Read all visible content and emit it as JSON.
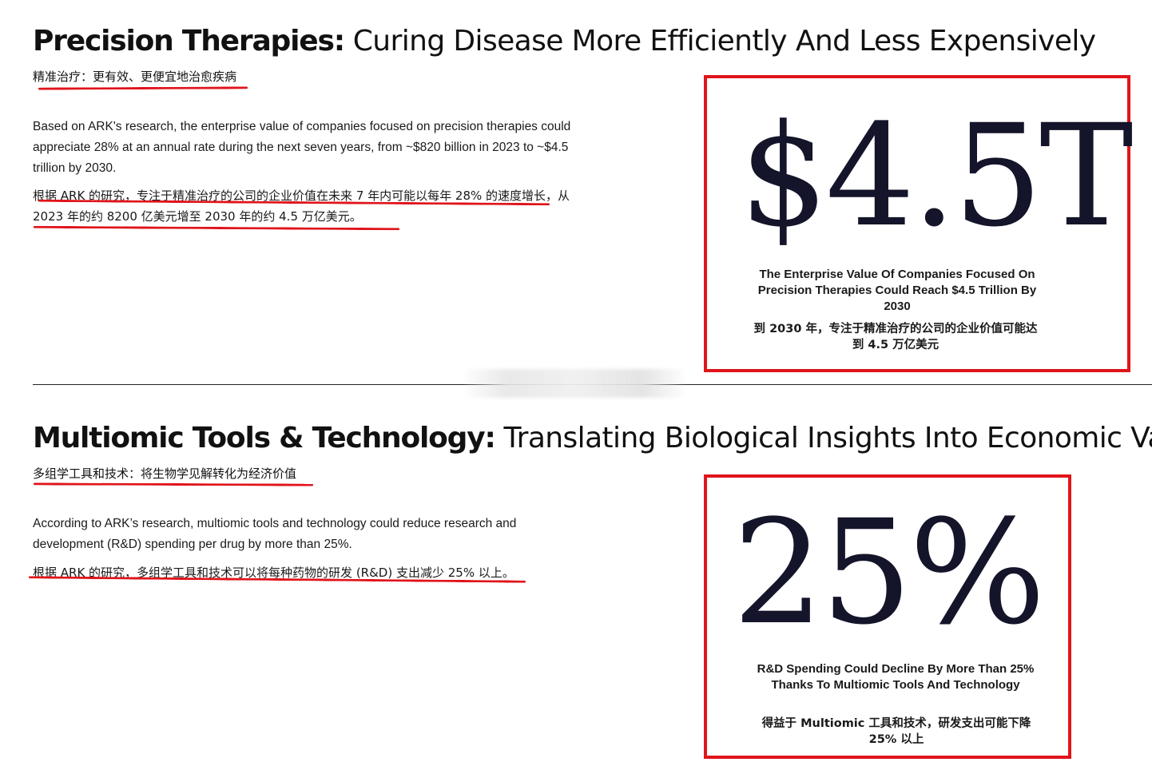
{
  "sections": [
    {
      "title_lead": "Precision Therapies:",
      "title_rest": " Curing Disease More Efficiently And Less Expensively",
      "subtitle_cn": "精准治疗：更有效、更便宜地治愈疾病",
      "body_en": "Based on ARK's research, the enterprise value of companies focused on precision therapies could appreciate 28% at an annual rate during the next seven years, from ~$820 billion in 2023 to ~$4.5 trillion by 2030.",
      "body_cn": "根据 ARK 的研究，专注于精准治疗的公司的企业价值在未来 7 年内可能以每年 28% 的速度增长，从 2023 年的约 8200 亿美元增至 2030 年的约 4.5 万亿美元。",
      "stat_value": "$4.5T",
      "stat_caption": "The Enterprise Value Of Companies Focused On Precision Therapies Could Reach $4.5 Trillion By 2030",
      "stat_caption_cn": "到 2030 年，专注于精准治疗的公司的企业价值可能达到 4.5 万亿美元"
    },
    {
      "title_lead": "Multiomic Tools & Technology:",
      "title_rest": " Translating Biological Insights Into Economic Value",
      "subtitle_cn": "多组学工具和技术：将生物学见解转化为经济价值",
      "body_en": "According to ARK’s research, multiomic tools and technology could reduce research and development (R&D) spending per drug by more than 25%.",
      "body_cn": "根据 ARK 的研究，多组学工具和技术可以将每种药物的研发 (R&D) 支出减少 25% 以上。",
      "stat_value": "25%",
      "stat_caption": "R&D Spending Could Decline By More Than 25% Thanks To Multiomic Tools And Technology",
      "stat_caption_cn": "得益于 Multiomic 工具和技术，研发支出可能下降 25% 以上"
    }
  ],
  "colors": {
    "highlight": "#e0141b",
    "stat_text": "#14142a"
  }
}
